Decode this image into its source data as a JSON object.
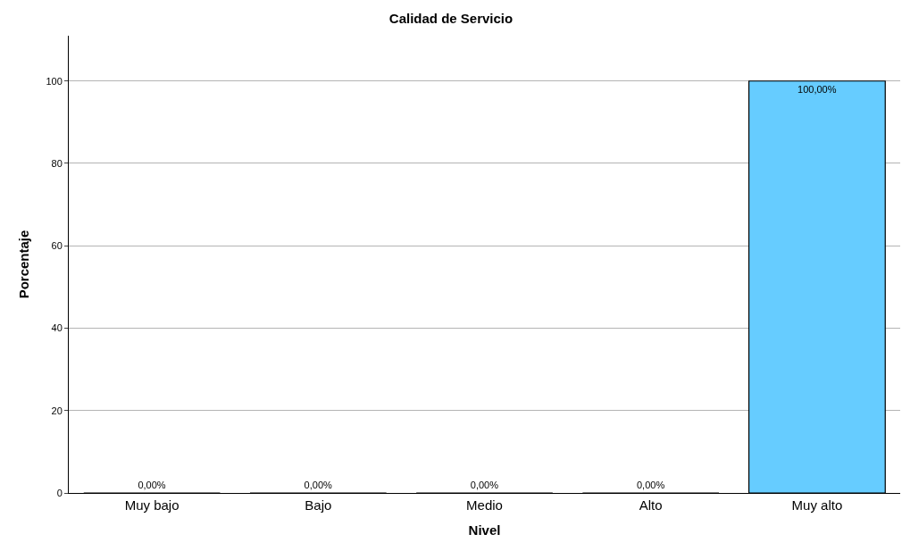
{
  "chart_data": {
    "type": "bar",
    "title": "Calidad de Servicio",
    "xlabel": "Nivel",
    "ylabel": "Porcentaje",
    "categories": [
      "Muy bajo",
      "Bajo",
      "Medio",
      "Alto",
      "Muy alto"
    ],
    "values": [
      0,
      0,
      0,
      0,
      100
    ],
    "value_labels": [
      "0,00%",
      "0,00%",
      "0,00%",
      "0,00%",
      "100,00%"
    ],
    "color": "#66ccff",
    "ylim": [
      0,
      111
    ],
    "yticks": [
      0,
      20,
      40,
      60,
      80,
      100
    ],
    "grid": "y",
    "legend": false
  }
}
